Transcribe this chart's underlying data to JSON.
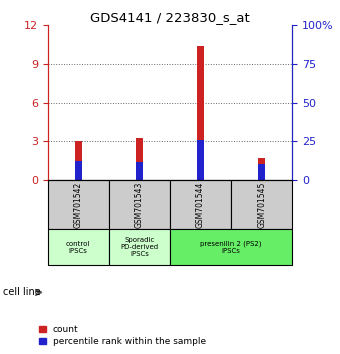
{
  "title": "GDS4141 / 223830_s_at",
  "samples": [
    "GSM701542",
    "GSM701543",
    "GSM701544",
    "GSM701545"
  ],
  "count_values": [
    3.05,
    3.25,
    10.35,
    1.75
  ],
  "percentile_values": [
    1.5,
    1.4,
    3.15,
    1.3
  ],
  "left_ylim": [
    0,
    12
  ],
  "left_yticks": [
    0,
    3,
    6,
    9,
    12
  ],
  "right_ylim": [
    0,
    100
  ],
  "right_yticks": [
    0,
    25,
    50,
    75,
    100
  ],
  "right_yticklabels": [
    "0",
    "25",
    "50",
    "75",
    "100%"
  ],
  "count_color": "#cc2222",
  "percentile_color": "#2222cc",
  "cell_line_label": "cell line",
  "legend_count": "count",
  "legend_percentile": "percentile rank within the sample",
  "bg_color": "#cccccc",
  "left_tick_color": "#cc2222",
  "right_tick_color": "#2222cc",
  "grid_color": "#000000",
  "grid_alpha": 0.6,
  "grid_linestyle": ":",
  "groups": [
    {
      "label": "control\nIPSCs",
      "start": 0,
      "end": 1,
      "color": "#ccffcc"
    },
    {
      "label": "Sporadic\nPD-derived\niPSCs",
      "start": 1,
      "end": 2,
      "color": "#ccffcc"
    },
    {
      "label": "presenilin 2 (PS2)\niPSCs",
      "start": 2,
      "end": 4,
      "color": "#66ee66"
    }
  ]
}
